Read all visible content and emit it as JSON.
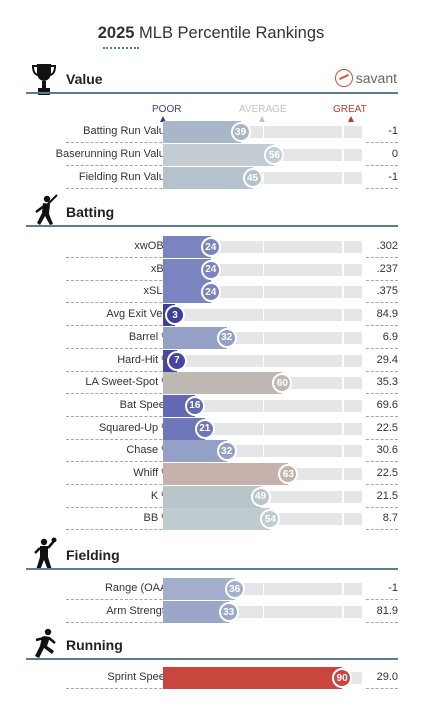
{
  "title": {
    "year": "2025",
    "rest": " MLB Percentile Rankings"
  },
  "brand": {
    "name": "savant",
    "color": "#c8553d"
  },
  "legend": {
    "poor": "POOR",
    "average": "AVERAGE",
    "great": "GREAT"
  },
  "sections": {
    "value": {
      "title": "Value",
      "icon": "trophy-icon"
    },
    "batting": {
      "title": "Batting",
      "icon": "batter-icon"
    },
    "fielding": {
      "title": "Fielding",
      "icon": "fielder-icon"
    },
    "running": {
      "title": "Running",
      "icon": "runner-icon"
    }
  },
  "rows": {
    "value": [
      {
        "label": "Batting Run Value",
        "percentile": 39,
        "value": "-1",
        "color": "#a8b6c8"
      },
      {
        "label": "Baserunning Run Value",
        "percentile": 56,
        "value": "0",
        "color": "#c3cdd3"
      },
      {
        "label": "Fielding Run Value",
        "percentile": 45,
        "value": "-1",
        "color": "#b5c2cb"
      }
    ],
    "batting": [
      {
        "label": "xwOBA",
        "percentile": 24,
        "value": ".302",
        "color": "#7b83c1"
      },
      {
        "label": "xBA",
        "percentile": 24,
        "value": ".237",
        "color": "#7b83c1"
      },
      {
        "label": "xSLG",
        "percentile": 24,
        "value": ".375",
        "color": "#7b83c1"
      },
      {
        "label": "Avg Exit Velo",
        "percentile": 3,
        "value": "84.9",
        "color": "#3d3f9a"
      },
      {
        "label": "Barrel %",
        "percentile": 32,
        "value": "6.9",
        "color": "#95a0c6"
      },
      {
        "label": "Hard-Hit %",
        "percentile": 7,
        "value": "29.4",
        "color": "#4747a3"
      },
      {
        "label": "LA Sweet-Spot %",
        "percentile": 60,
        "value": "35.3",
        "color": "#beb9b5"
      },
      {
        "label": "Bat Speed",
        "percentile": 16,
        "value": "69.6",
        "color": "#6468b3"
      },
      {
        "label": "Squared-Up %",
        "percentile": 21,
        "value": "22.5",
        "color": "#7077b9"
      },
      {
        "label": "Chase %",
        "percentile": 32,
        "value": "30.6",
        "color": "#95a0c6"
      },
      {
        "label": "Whiff %",
        "percentile": 63,
        "value": "22.5",
        "color": "#c7b1ad"
      },
      {
        "label": "K %",
        "percentile": 49,
        "value": "21.5",
        "color": "#b8c6cc"
      },
      {
        "label": "BB %",
        "percentile": 54,
        "value": "8.7",
        "color": "#bfccd0"
      }
    ],
    "fielding": [
      {
        "label": "Range (OAA)",
        "percentile": 36,
        "value": "-1",
        "color": "#a2aecb"
      },
      {
        "label": "Arm Strength",
        "percentile": 33,
        "value": "81.9",
        "color": "#9ba6c8"
      }
    ],
    "running": [
      {
        "label": "Sprint Speed",
        "percentile": 90,
        "value": "29.0",
        "color": "#c8463e"
      }
    ]
  }
}
